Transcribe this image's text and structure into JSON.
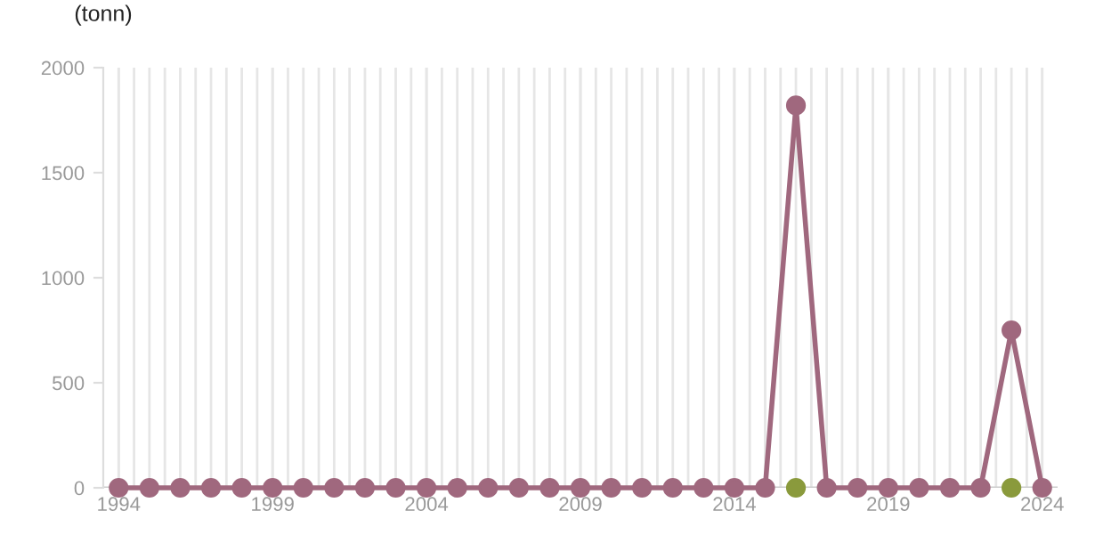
{
  "chart_data": {
    "type": "line",
    "ylabel": "(tonn)",
    "x": [
      1994,
      1995,
      1996,
      1997,
      1998,
      1999,
      2000,
      2001,
      2002,
      2003,
      2004,
      2005,
      2006,
      2007,
      2008,
      2009,
      2010,
      2011,
      2012,
      2013,
      2014,
      2015,
      2016,
      2017,
      2018,
      2019,
      2020,
      2021,
      2022,
      2023,
      2024
    ],
    "series": [
      {
        "color": "#a0687e",
        "values": [
          0,
          0,
          0,
          0,
          0,
          0,
          0,
          0,
          0,
          0,
          0,
          0,
          0,
          0,
          0,
          0,
          0,
          0,
          0,
          0,
          0,
          0,
          1820,
          0,
          0,
          0,
          0,
          0,
          0,
          750,
          0
        ]
      },
      {
        "color": "#8a9a3c",
        "type": "scatter",
        "x": [
          2016,
          2023
        ],
        "values": [
          0,
          0
        ]
      }
    ],
    "xlim": [
      1993.5,
      2024.5
    ],
    "ylim": [
      0,
      2000
    ],
    "xticks": [
      1994,
      1999,
      2004,
      2009,
      2014,
      2019,
      2024
    ],
    "yticks": [
      0,
      500,
      1000,
      1500,
      2000
    ],
    "grid": "x",
    "marker": "circle",
    "line_style": "solid"
  }
}
